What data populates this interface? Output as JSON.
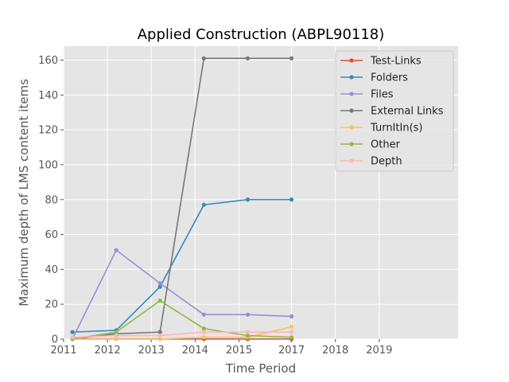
{
  "chart_data": {
    "type": "line",
    "title": "Applied Construction (ABPL90118)",
    "xlabel": "Time Period",
    "ylabel": "Maximum depth of LMS content items",
    "xlim": [
      2011,
      2020
    ],
    "ylim": [
      0,
      168
    ],
    "x_ticks": [
      {
        "value": 2011,
        "label": "2011"
      },
      {
        "value": 2012,
        "label": "2012"
      },
      {
        "value": 2013,
        "label": "2013"
      },
      {
        "value": 2014,
        "label": "2014"
      },
      {
        "value": 2015,
        "label": "2015"
      },
      {
        "value": 2016.2,
        "label": "2017"
      },
      {
        "value": 2017.2,
        "label": "2018"
      },
      {
        "value": 2018.2,
        "label": "2019"
      }
    ],
    "y_ticks": [
      0,
      20,
      40,
      60,
      80,
      100,
      120,
      140,
      160
    ],
    "grid": true,
    "legend_position": "top-right",
    "x": [
      2011.2,
      2012.2,
      2013.2,
      2014.2,
      2015.2,
      2016.2
    ],
    "series": [
      {
        "name": "Test-Links",
        "color": "#e24a33",
        "values": [
          0,
          0,
          0,
          0,
          0,
          0
        ]
      },
      {
        "name": "Folders",
        "color": "#348abd",
        "values": [
          4,
          5,
          30,
          77,
          80,
          80
        ]
      },
      {
        "name": "Files",
        "color": "#988ed5",
        "values": [
          0,
          51,
          32,
          14,
          14,
          13
        ]
      },
      {
        "name": "External Links",
        "color": "#777777",
        "values": [
          0,
          3,
          4,
          161,
          161,
          161
        ]
      },
      {
        "name": "TurnItIn(s)",
        "color": "#fbc15e",
        "values": [
          0,
          0,
          0,
          1,
          1,
          7
        ]
      },
      {
        "name": "Other",
        "color": "#8eba42",
        "values": [
          0,
          4,
          22,
          6,
          2,
          1
        ]
      },
      {
        "name": "Depth",
        "color": "#ffb5b8",
        "values": [
          1,
          2,
          2,
          4,
          4,
          4
        ]
      }
    ]
  }
}
